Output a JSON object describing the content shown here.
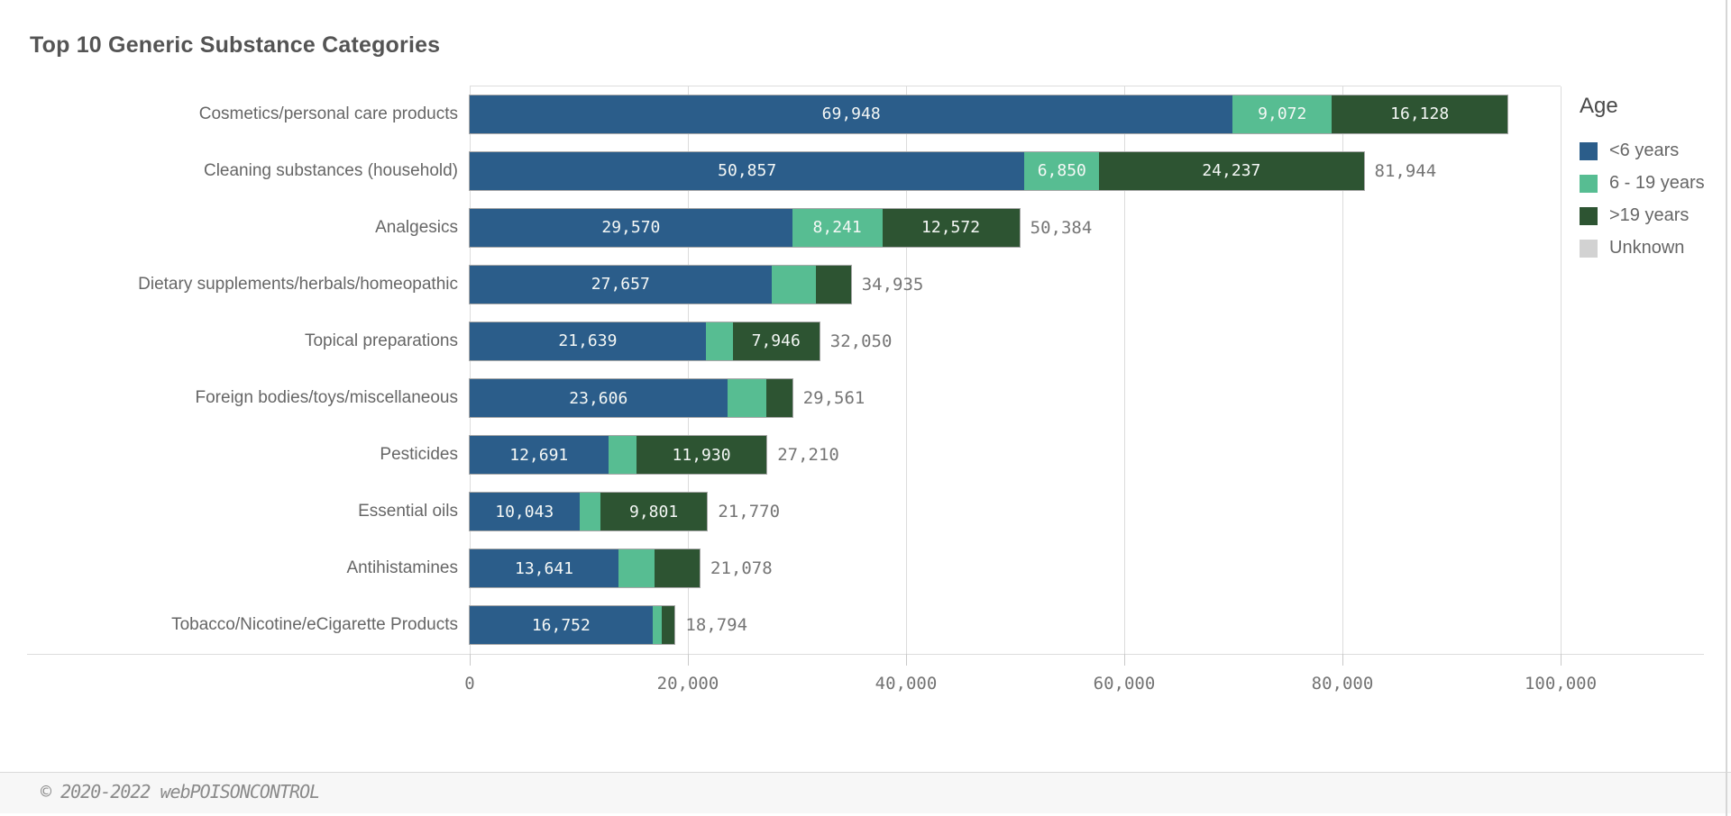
{
  "title": "Top 10 Generic Substance Categories",
  "footer": {
    "copyright": "© 2020-2022 webPOISONCONTROL"
  },
  "legend": {
    "title": "Age",
    "position": "right",
    "items": [
      {
        "label": "<6 years",
        "color": "#2b5d8a"
      },
      {
        "label": "6 - 19 years",
        "color": "#57bd92"
      },
      {
        "label": ">19 years",
        "color": "#2d5432"
      },
      {
        "label": "Unknown",
        "color": "#d2d2d2"
      }
    ]
  },
  "colors": {
    "bar_outline": "#a8a8a8",
    "gridline": "#dcdcdc",
    "segment_label_text": "#f5f8f6",
    "total_label_text": "#757575",
    "category_label_text": "#666666",
    "title_text": "#545454",
    "footer_background": "#f7f7f7"
  },
  "chart_data": {
    "type": "bar",
    "orientation": "horizontal",
    "stacked": true,
    "title": "Top 10 Generic Substance Categories",
    "xlabel": "",
    "ylabel": "",
    "legend_title": "Age",
    "series_names": [
      "<6 years",
      "6 - 19 years",
      ">19 years",
      "Unknown"
    ],
    "x_axis": {
      "min": 0,
      "max": 100000,
      "grid": true,
      "tick_values": [
        0,
        20000,
        40000,
        60000,
        80000,
        100000
      ],
      "tick_labels": [
        "0",
        "20,000",
        "40,000",
        "60,000",
        "80,000",
        "100,000"
      ]
    },
    "rows": [
      {
        "category": "Cosmetics/personal care products",
        "segments": [
          {
            "series": "<6 years",
            "value": 69948,
            "label": "69,948"
          },
          {
            "series": "6 - 19 years",
            "value": 9072,
            "label": "9,072"
          },
          {
            "series": ">19 years",
            "value": 16128,
            "label": "16,128"
          }
        ],
        "total": 95148,
        "total_label": null
      },
      {
        "category": "Cleaning substances (household)",
        "segments": [
          {
            "series": "<6 years",
            "value": 50857,
            "label": "50,857"
          },
          {
            "series": "6 - 19 years",
            "value": 6850,
            "label": "6,850"
          },
          {
            "series": ">19 years",
            "value": 24237,
            "label": "24,237"
          }
        ],
        "total": 81944,
        "total_label": "81,944"
      },
      {
        "category": "Analgesics",
        "segments": [
          {
            "series": "<6 years",
            "value": 29570,
            "label": "29,570"
          },
          {
            "series": "6 - 19 years",
            "value": 8241,
            "label": "8,241"
          },
          {
            "series": ">19 years",
            "value": 12572,
            "label": "12,572"
          }
        ],
        "total": 50384,
        "total_label": "50,384"
      },
      {
        "category": "Dietary supplements/herbals/homeopathic",
        "segments": [
          {
            "series": "<6 years",
            "value": 27657,
            "label": "27,657"
          },
          {
            "series": "6 - 19 years",
            "value": 4100,
            "label": null,
            "estimated": true
          },
          {
            "series": ">19 years",
            "value": 3178,
            "label": null,
            "estimated": true
          }
        ],
        "total": 34935,
        "total_label": "34,935"
      },
      {
        "category": "Topical preparations",
        "segments": [
          {
            "series": "<6 years",
            "value": 21639,
            "label": "21,639"
          },
          {
            "series": "6 - 19 years",
            "value": 2465,
            "label": null,
            "estimated": true
          },
          {
            "series": ">19 years",
            "value": 7946,
            "label": "7,946"
          }
        ],
        "total": 32050,
        "total_label": "32,050"
      },
      {
        "category": "Foreign bodies/toys/miscellaneous",
        "segments": [
          {
            "series": "<6 years",
            "value": 23606,
            "label": "23,606"
          },
          {
            "series": "6 - 19 years",
            "value": 3600,
            "label": null,
            "estimated": true
          },
          {
            "series": ">19 years",
            "value": 2355,
            "label": null,
            "estimated": true
          }
        ],
        "total": 29561,
        "total_label": "29,561"
      },
      {
        "category": "Pesticides",
        "segments": [
          {
            "series": "<6 years",
            "value": 12691,
            "label": "12,691"
          },
          {
            "series": "6 - 19 years",
            "value": 2589,
            "label": null,
            "estimated": true
          },
          {
            "series": ">19 years",
            "value": 11930,
            "label": "11,930"
          }
        ],
        "total": 27210,
        "total_label": "27,210"
      },
      {
        "category": "Essential oils",
        "segments": [
          {
            "series": "<6 years",
            "value": 10043,
            "label": "10,043"
          },
          {
            "series": "6 - 19 years",
            "value": 1926,
            "label": null,
            "estimated": true
          },
          {
            "series": ">19 years",
            "value": 9801,
            "label": "9,801"
          }
        ],
        "total": 21770,
        "total_label": "21,770"
      },
      {
        "category": "Antihistamines",
        "segments": [
          {
            "series": "<6 years",
            "value": 13641,
            "label": "13,641"
          },
          {
            "series": "6 - 19 years",
            "value": 3300,
            "label": null,
            "estimated": true
          },
          {
            "series": ">19 years",
            "value": 4137,
            "label": null,
            "estimated": true
          }
        ],
        "total": 21078,
        "total_label": "21,078"
      },
      {
        "category": "Tobacco/Nicotine/eCigarette Products",
        "segments": [
          {
            "series": "<6 years",
            "value": 16752,
            "label": "16,752"
          },
          {
            "series": "6 - 19 years",
            "value": 850,
            "label": null,
            "estimated": true
          },
          {
            "series": ">19 years",
            "value": 1192,
            "label": null,
            "estimated": true
          }
        ],
        "total": 18794,
        "total_label": "18,794"
      }
    ]
  }
}
